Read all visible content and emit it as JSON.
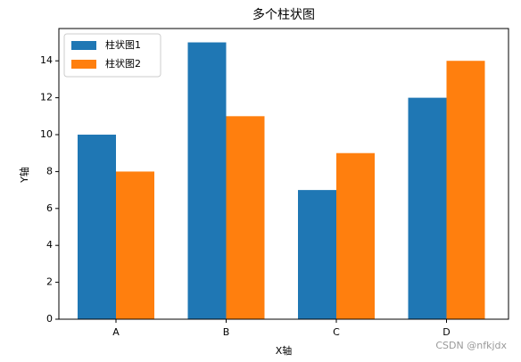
{
  "chart_data": {
    "type": "bar",
    "title": "多个柱状图",
    "x_label": "X轴",
    "y_label": "Y轴",
    "categories": [
      "A",
      "B",
      "C",
      "D"
    ],
    "series": [
      {
        "name": "柱状图1",
        "color": "#1f77b4",
        "values": [
          10,
          15,
          7,
          12
        ]
      },
      {
        "name": "柱状图2",
        "color": "#ff7f0e",
        "values": [
          8,
          11,
          9,
          14
        ]
      }
    ],
    "ylim": [
      0,
      15.75
    ],
    "yticks": [
      0,
      2,
      4,
      6,
      8,
      10,
      12,
      14
    ],
    "legend": "upper left",
    "grid": false,
    "watermark": "CSDN @nfkjdx"
  }
}
